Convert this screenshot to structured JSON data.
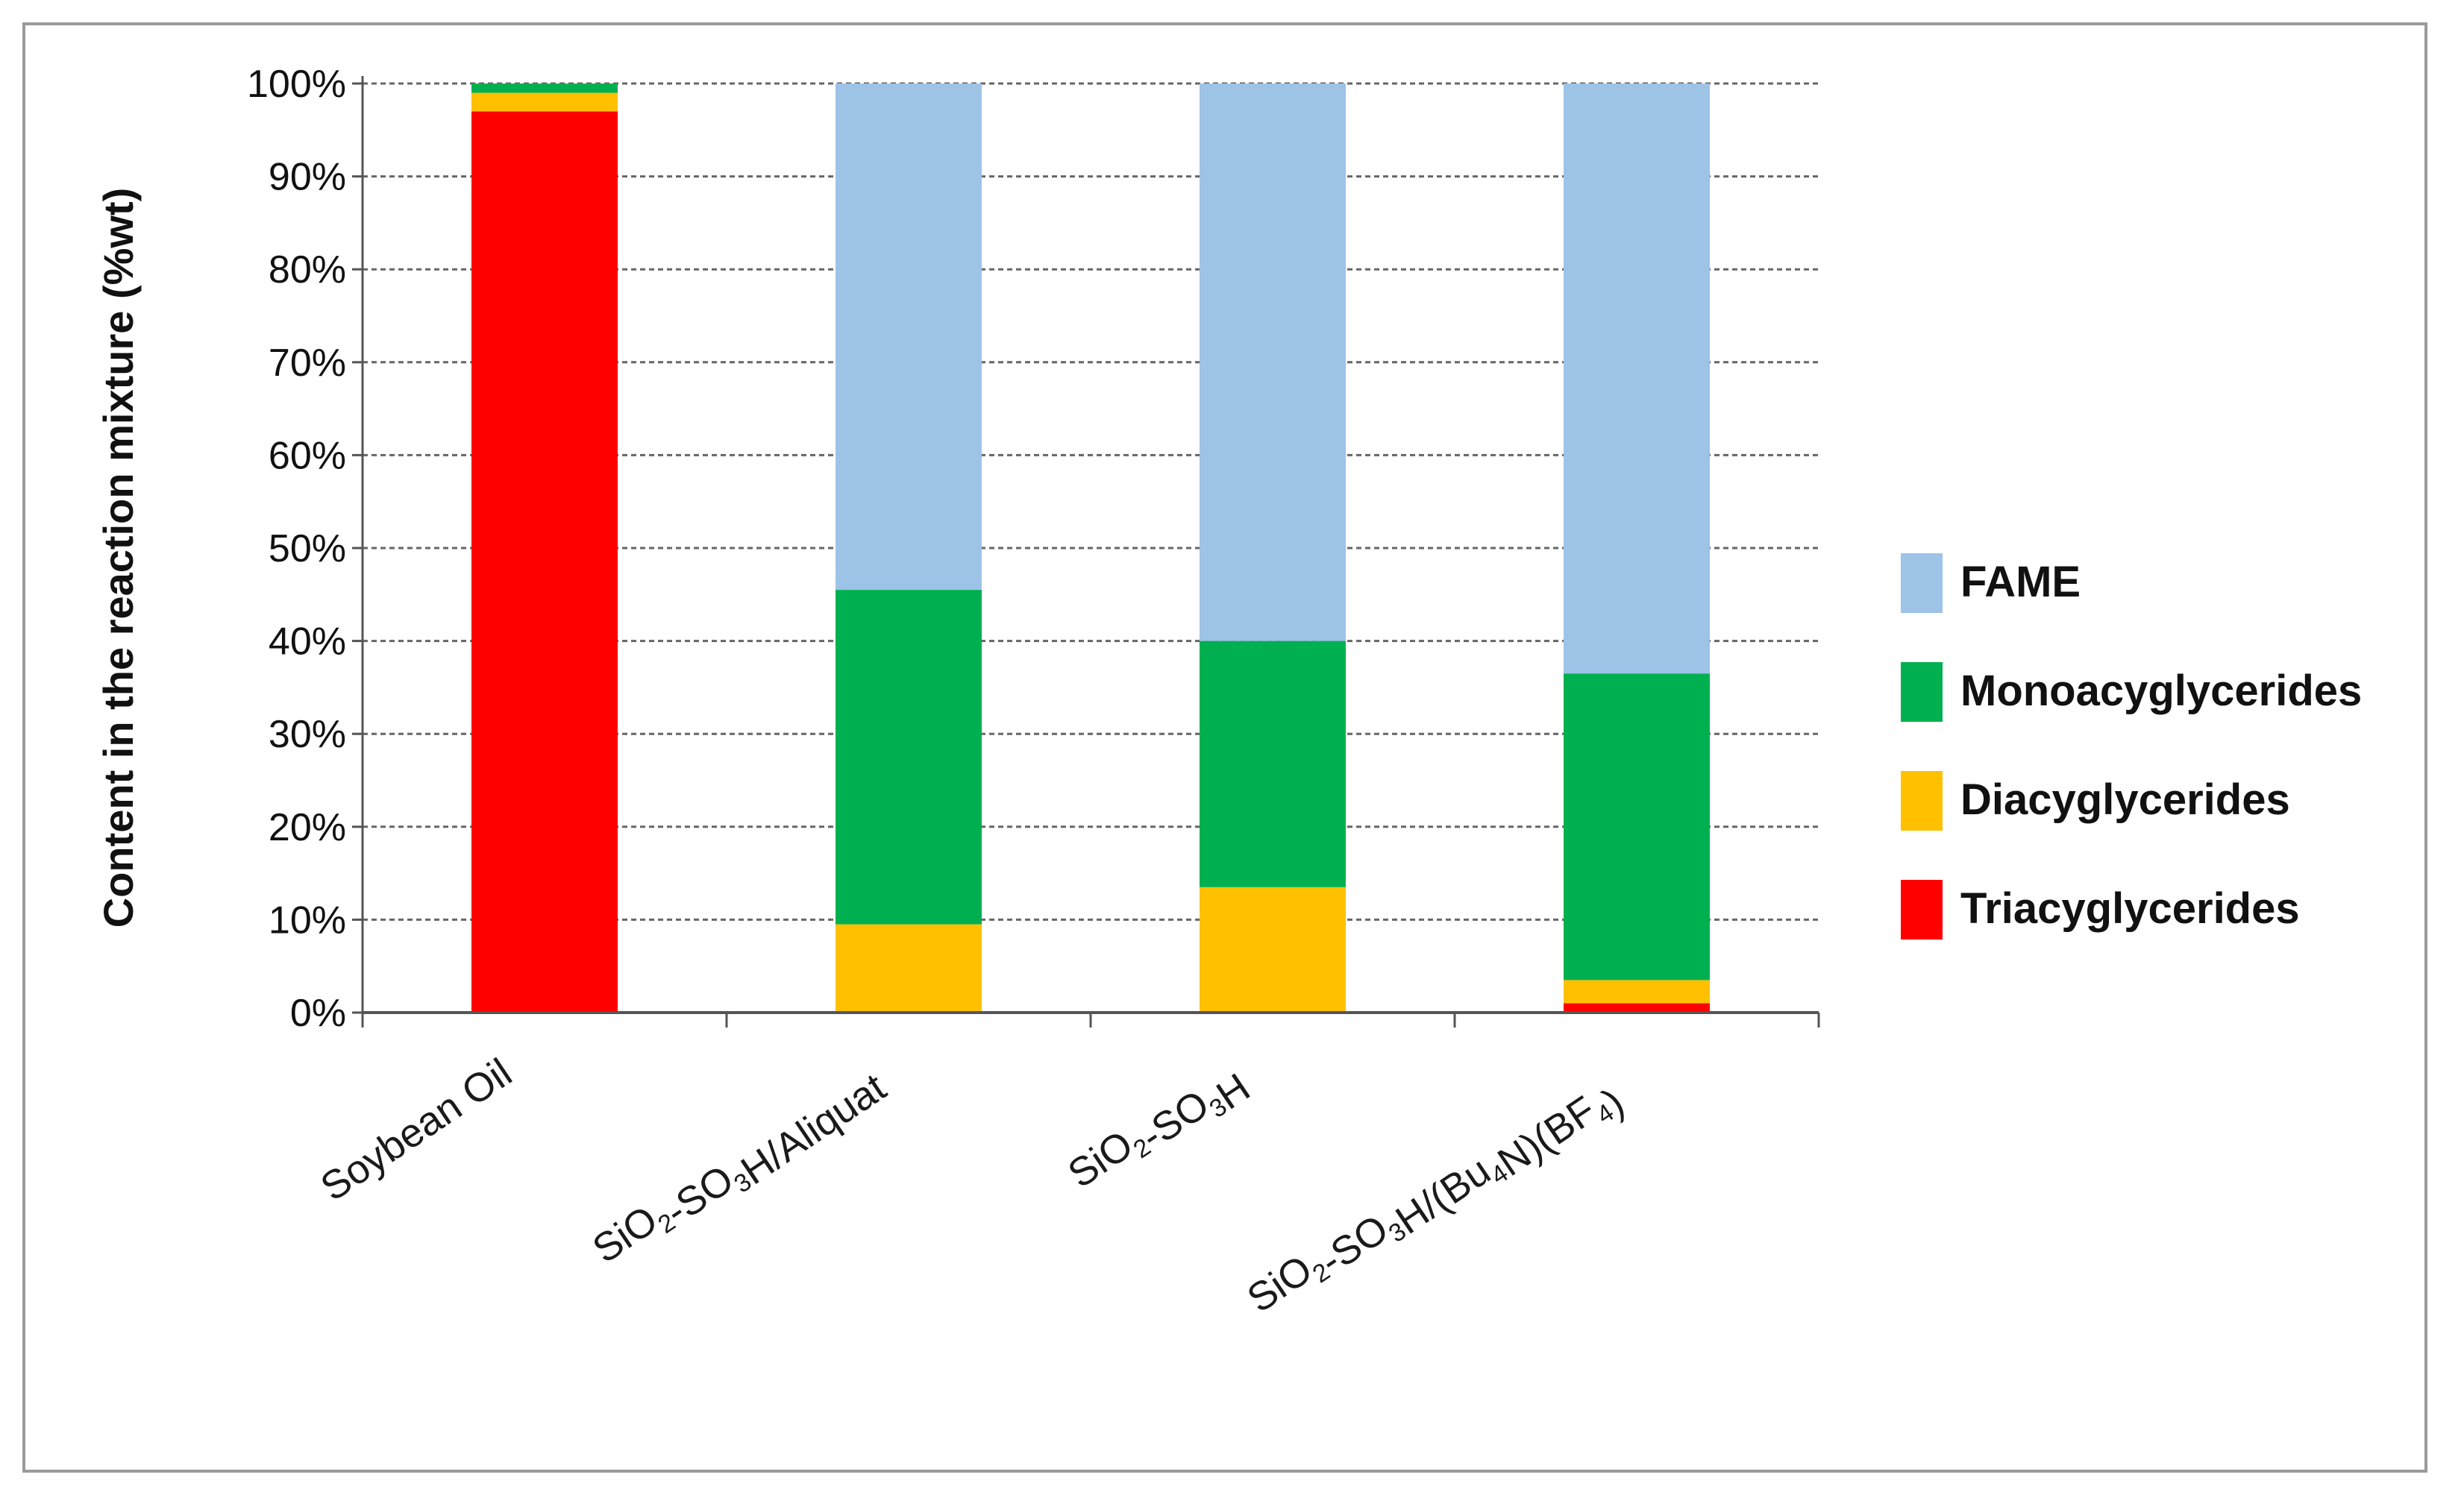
{
  "chart_data": {
    "type": "bar",
    "stacked": true,
    "title": "",
    "xlabel": "",
    "ylabel": "Content in the reaction mixture (%wt)",
    "ylim": [
      0,
      100
    ],
    "yticks": [
      "0%",
      "10%",
      "20%",
      "30%",
      "40%",
      "50%",
      "60%",
      "70%",
      "80%",
      "90%",
      "100%"
    ],
    "grid": true,
    "legend_position": "right",
    "categories": [
      {
        "parts": [
          {
            "t": "Soybean Oil"
          }
        ]
      },
      {
        "parts": [
          {
            "t": "SiO"
          },
          {
            "t": "2",
            "sub": true
          },
          {
            "t": "-SO"
          },
          {
            "t": "3",
            "sub": true
          },
          {
            "t": "H/Aliquat"
          }
        ]
      },
      {
        "parts": [
          {
            "t": "SiO"
          },
          {
            "t": "2",
            "sub": true
          },
          {
            "t": "-SO"
          },
          {
            "t": "3",
            "sub": true
          },
          {
            "t": "H"
          }
        ]
      },
      {
        "parts": [
          {
            "t": "SiO"
          },
          {
            "t": "2",
            "sub": true
          },
          {
            "t": "-SO"
          },
          {
            "t": "3",
            "sub": true
          },
          {
            "t": "H/(Bu"
          },
          {
            "t": "4",
            "sub": true
          },
          {
            "t": "N)(BF"
          },
          {
            "t": "4",
            "sub": true
          },
          {
            "t": ")"
          }
        ]
      }
    ],
    "series": [
      {
        "name": "Triacyglycerides",
        "color": "#ff0000",
        "values": [
          97,
          0,
          0,
          1
        ]
      },
      {
        "name": "Diacyglycerides",
        "color": "#ffc000",
        "values": [
          2,
          9.5,
          13.5,
          2.5
        ]
      },
      {
        "name": "Monoacyglycerides",
        "color": "#00b050",
        "values": [
          1,
          36,
          26.5,
          33
        ]
      },
      {
        "name": "FAME",
        "color": "#9dc3e6",
        "values": [
          0,
          54.5,
          60,
          63.5
        ]
      }
    ],
    "legend_order": [
      "FAME",
      "Monoacyglycerides",
      "Diacyglycerides",
      "Triacyglycerides"
    ]
  }
}
